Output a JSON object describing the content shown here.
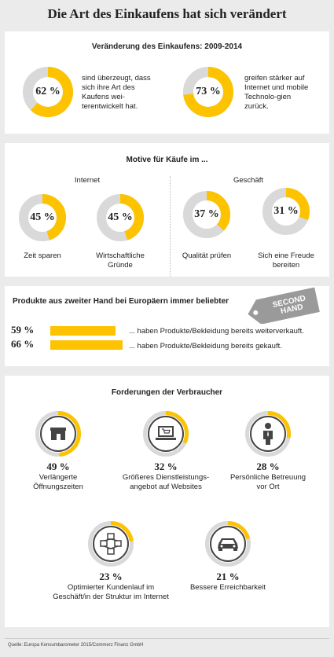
{
  "page_title": "Die Art des Einkaufens hat sich verändert",
  "colors": {
    "accent": "#fdc300",
    "track": "#d9d9d9",
    "icon": "#444444"
  },
  "section1": {
    "heading": "Veränderung des Einkaufens: 2009-2014",
    "items": [
      {
        "pct_label": "62 %",
        "value": 62,
        "text": "sind überzeugt, dass sich ihre Art des Kaufens wei-terentwickelt hat."
      },
      {
        "pct_label": "73 %",
        "value": 73,
        "text": "greifen stärker auf Internet und mobile Technolo-gien zurück."
      }
    ]
  },
  "section2": {
    "heading": "Motive für Käufe im ...",
    "internet_label": "Internet",
    "shop_label": "Geschäft",
    "items": [
      {
        "pct_label": "45 %",
        "value": 45,
        "text": "Zeit sparen"
      },
      {
        "pct_label": "45 %",
        "value": 45,
        "text": "Wirtschaftliche Gründe"
      },
      {
        "pct_label": "37 %",
        "value": 37,
        "text": "Qualität prüfen"
      },
      {
        "pct_label": "31 %",
        "value": 31,
        "text": "Sich eine Freude bereiten"
      }
    ]
  },
  "section3": {
    "heading": "Produkte aus zweiter Hand bei Europäern immer beliebter",
    "tag_text": "SECOND HAND",
    "rows": [
      {
        "pct_label": "59 %",
        "value": 59,
        "text": "... haben Produkte/Bekleidung bereits weiterverkauft."
      },
      {
        "pct_label": "66 %",
        "value": 66,
        "text": "... haben Produkte/Bekleidung bereits gekauft."
      }
    ]
  },
  "section4": {
    "heading": "Forderungen der Verbraucher",
    "items": [
      {
        "pct_label": "49 %",
        "value": 49,
        "icon": "shop-icon",
        "text": "Verlängerte Öffnungszeiten"
      },
      {
        "pct_label": "32 %",
        "value": 32,
        "icon": "laptop-cart-icon",
        "text": "Größeres Dienstleistungs-angebot auf Websites"
      },
      {
        "pct_label": "28 %",
        "value": 28,
        "icon": "person-icon",
        "text": "Persönliche Betreuung vor Ort"
      },
      {
        "pct_label": "23 %",
        "value": 23,
        "icon": "structure-icon",
        "text": "Optimierter Kundenlauf im Geschäft/in der Struktur im Internet"
      },
      {
        "pct_label": "21 %",
        "value": 21,
        "icon": "car-icon",
        "text": "Bessere Erreichbarkeit"
      }
    ]
  },
  "source": "Quelle: Europa Konsumbarometer 2015/Commerz Finanz GmbH",
  "chart_data": [
    {
      "type": "pie",
      "title": "Veränderung des Einkaufens: 2009-2014",
      "categories": [
        "sind überzeugt, dass sich ihre Art des Kaufens weiterentwickelt hat.",
        "greifen stärker auf Internet und mobile Technologien zurück."
      ],
      "values": [
        62,
        73
      ],
      "unit": "%"
    },
    {
      "type": "pie",
      "title": "Motive für Käufe im ...",
      "series": [
        {
          "name": "Internet",
          "categories": [
            "Zeit sparen",
            "Wirtschaftliche Gründe"
          ],
          "values": [
            45,
            45
          ]
        },
        {
          "name": "Geschäft",
          "categories": [
            "Qualität prüfen",
            "Sich eine Freude bereiten"
          ],
          "values": [
            37,
            31
          ]
        }
      ],
      "unit": "%"
    },
    {
      "type": "bar",
      "title": "Produkte aus zweiter Hand bei Europäern immer beliebter",
      "categories": [
        "... haben Produkte/Bekleidung bereits weiterverkauft.",
        "... haben Produkte/Bekleidung bereits gekauft."
      ],
      "values": [
        59,
        66
      ],
      "unit": "%"
    },
    {
      "type": "pie",
      "title": "Forderungen der Verbraucher",
      "categories": [
        "Verlängerte Öffnungszeiten",
        "Größeres Dienstleistungsangebot auf Websites",
        "Persönliche Betreuung vor Ort",
        "Optimierter Kundenlauf im Geschäft/in der Struktur im Internet",
        "Bessere Erreichbarkeit"
      ],
      "values": [
        49,
        32,
        28,
        23,
        21
      ],
      "unit": "%"
    }
  ]
}
